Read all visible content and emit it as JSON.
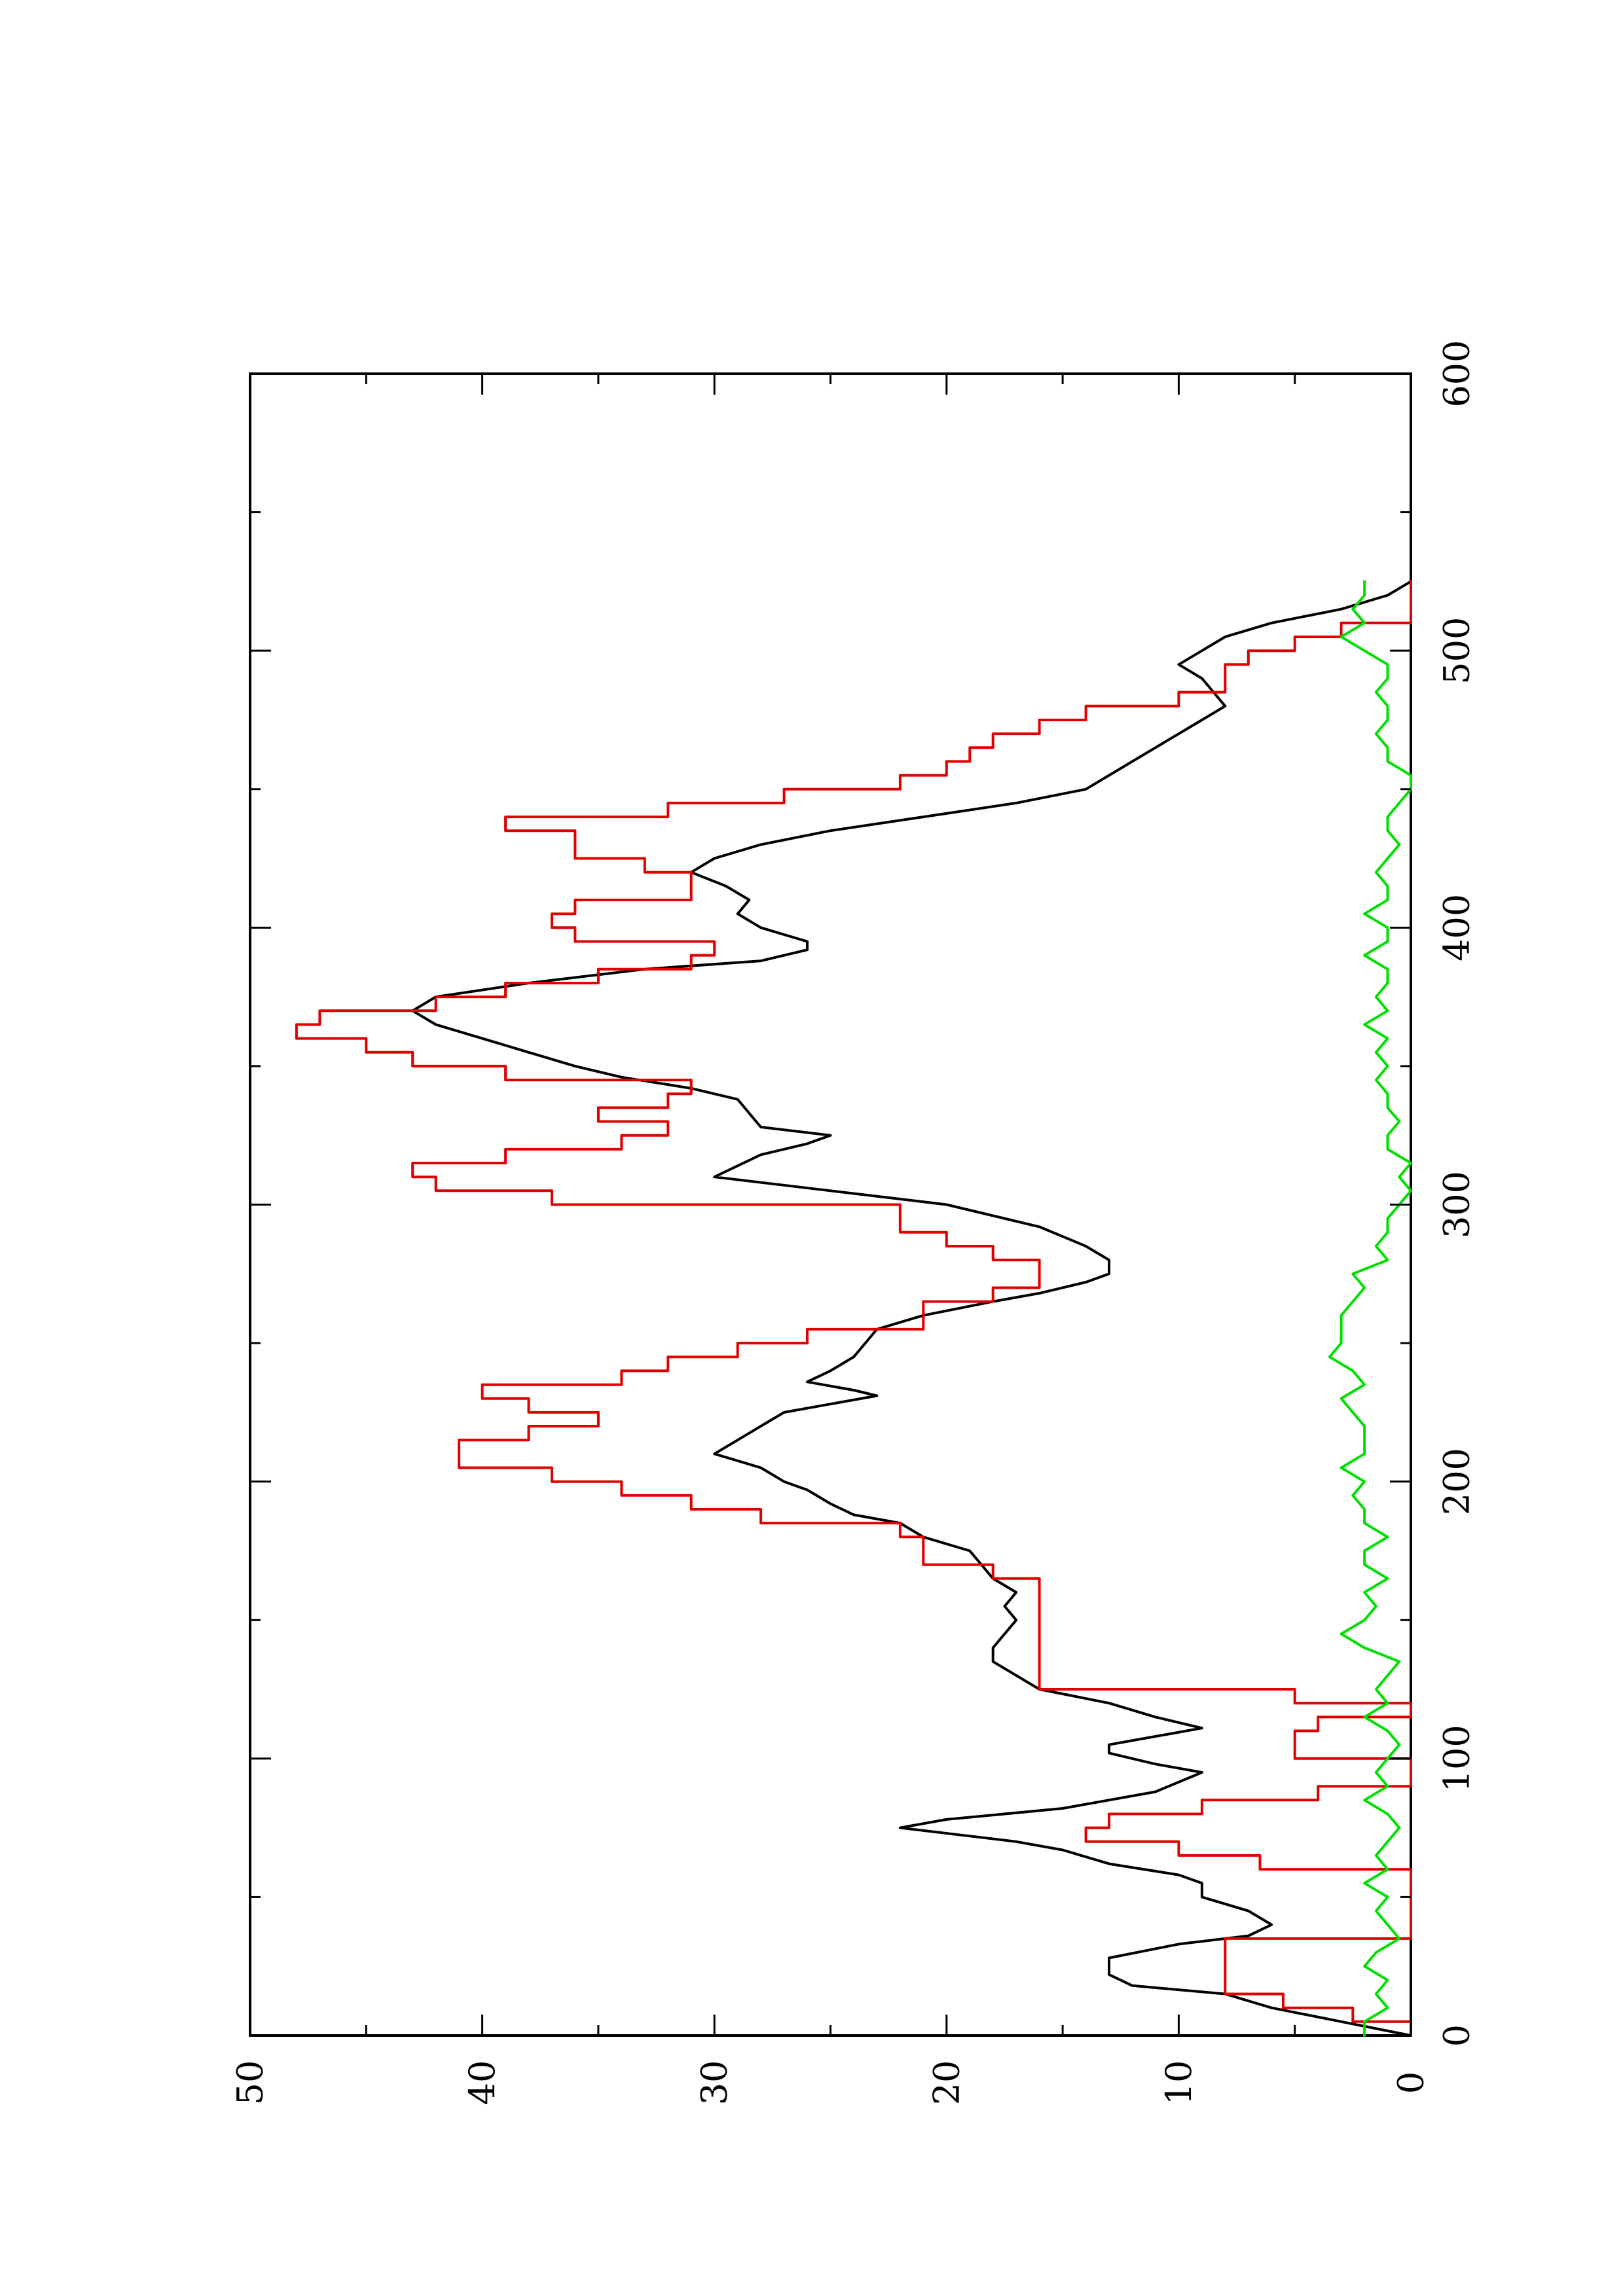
{
  "chart_data": {
    "type": "line",
    "orientation": "rotated-90-ccw",
    "title": "",
    "xlabel": "",
    "ylabel": "",
    "xlim": [
      0,
      600
    ],
    "ylim": [
      0,
      50
    ],
    "x_major_ticks": [
      0,
      100,
      200,
      300,
      400,
      500,
      600
    ],
    "x_tick_labels": [
      "0",
      "100",
      "200",
      "300",
      "400",
      "500",
      "600"
    ],
    "x_minor_ticks": [
      50,
      150,
      250,
      350,
      450,
      550
    ],
    "y_major_ticks": [
      0,
      10,
      20,
      30,
      40,
      50
    ],
    "y_tick_labels": [
      "0",
      "10",
      "20",
      "30",
      "40",
      "50"
    ],
    "y_minor_ticks": [
      5,
      15,
      25,
      35,
      45
    ],
    "grid": false,
    "legend": "none",
    "series": [
      {
        "color": "#000000",
        "style": "smooth",
        "points": [
          [
            0,
            0
          ],
          [
            5,
            3
          ],
          [
            10,
            6
          ],
          [
            15,
            8
          ],
          [
            18,
            12
          ],
          [
            22,
            13
          ],
          [
            28,
            13
          ],
          [
            33,
            10
          ],
          [
            36,
            7
          ],
          [
            40,
            6
          ],
          [
            45,
            7
          ],
          [
            50,
            9
          ],
          [
            55,
            9
          ],
          [
            58,
            10
          ],
          [
            62,
            13
          ],
          [
            67,
            15
          ],
          [
            70,
            17
          ],
          [
            72,
            19
          ],
          [
            75,
            22
          ],
          [
            78,
            20
          ],
          [
            82,
            15
          ],
          [
            88,
            11
          ],
          [
            95,
            9
          ],
          [
            98,
            11
          ],
          [
            102,
            13
          ],
          [
            105,
            13
          ],
          [
            108,
            11
          ],
          [
            111,
            9
          ],
          [
            115,
            11
          ],
          [
            120,
            13
          ],
          [
            125,
            16
          ],
          [
            130,
            17
          ],
          [
            135,
            18
          ],
          [
            140,
            18
          ],
          [
            145,
            17.5
          ],
          [
            150,
            17
          ],
          [
            155,
            17.5
          ],
          [
            160,
            17
          ],
          [
            165,
            18
          ],
          [
            170,
            18.5
          ],
          [
            175,
            19
          ],
          [
            180,
            21
          ],
          [
            185,
            22
          ],
          [
            188,
            24
          ],
          [
            192,
            25
          ],
          [
            197,
            26
          ],
          [
            200,
            27
          ],
          [
            205,
            28
          ],
          [
            210,
            30
          ],
          [
            215,
            29
          ],
          [
            220,
            28
          ],
          [
            225,
            27
          ],
          [
            228,
            25
          ],
          [
            231,
            23
          ],
          [
            233,
            24
          ],
          [
            236,
            26
          ],
          [
            240,
            25
          ],
          [
            245,
            24
          ],
          [
            250,
            23.5
          ],
          [
            255,
            23
          ],
          [
            260,
            21
          ],
          [
            265,
            18
          ],
          [
            268,
            16
          ],
          [
            272,
            14
          ],
          [
            275,
            13
          ],
          [
            280,
            13
          ],
          [
            285,
            14
          ],
          [
            292,
            16
          ],
          [
            300,
            20
          ],
          [
            305,
            25
          ],
          [
            310,
            30
          ],
          [
            318,
            28
          ],
          [
            322,
            26
          ],
          [
            325,
            25
          ],
          [
            328,
            28
          ],
          [
            333,
            28.5
          ],
          [
            338,
            29
          ],
          [
            342,
            31
          ],
          [
            346,
            34
          ],
          [
            350,
            36
          ],
          [
            355,
            38
          ],
          [
            360,
            40
          ],
          [
            365,
            42
          ],
          [
            370,
            43
          ],
          [
            375,
            42
          ],
          [
            380,
            38
          ],
          [
            385,
            33
          ],
          [
            388,
            28
          ],
          [
            392,
            26
          ],
          [
            395,
            26
          ],
          [
            400,
            28
          ],
          [
            405,
            29
          ],
          [
            410,
            28.5
          ],
          [
            415,
            29.5
          ],
          [
            420,
            31
          ],
          [
            425,
            30
          ],
          [
            430,
            28
          ],
          [
            435,
            25
          ],
          [
            440,
            21
          ],
          [
            445,
            17
          ],
          [
            450,
            14
          ],
          [
            455,
            13
          ],
          [
            460,
            12
          ],
          [
            465,
            11
          ],
          [
            470,
            10
          ],
          [
            475,
            9
          ],
          [
            480,
            8
          ],
          [
            485,
            8.5
          ],
          [
            490,
            9
          ],
          [
            495,
            10
          ],
          [
            500,
            9
          ],
          [
            505,
            8
          ],
          [
            510,
            6
          ],
          [
            515,
            3
          ],
          [
            520,
            1
          ],
          [
            525,
            0
          ]
        ]
      },
      {
        "color": "#e00000",
        "style": "stepped",
        "points": [
          [
            0,
            0
          ],
          [
            5,
            2.5
          ],
          [
            10,
            5.5
          ],
          [
            15,
            8
          ],
          [
            20,
            8
          ],
          [
            25,
            8
          ],
          [
            30,
            8
          ],
          [
            35,
            0
          ],
          [
            40,
            0
          ],
          [
            45,
            0
          ],
          [
            50,
            0
          ],
          [
            55,
            0
          ],
          [
            60,
            6.5
          ],
          [
            65,
            10
          ],
          [
            70,
            14
          ],
          [
            75,
            13
          ],
          [
            80,
            9
          ],
          [
            85,
            4
          ],
          [
            90,
            0
          ],
          [
            95,
            0
          ],
          [
            100,
            5
          ],
          [
            105,
            5
          ],
          [
            110,
            4
          ],
          [
            115,
            0
          ],
          [
            120,
            5
          ],
          [
            125,
            16
          ],
          [
            130,
            16
          ],
          [
            135,
            16
          ],
          [
            140,
            16
          ],
          [
            145,
            16
          ],
          [
            150,
            16
          ],
          [
            155,
            16
          ],
          [
            160,
            16
          ],
          [
            165,
            18
          ],
          [
            170,
            21
          ],
          [
            175,
            21
          ],
          [
            180,
            22
          ],
          [
            185,
            28
          ],
          [
            190,
            31
          ],
          [
            195,
            34
          ],
          [
            200,
            37
          ],
          [
            205,
            41
          ],
          [
            210,
            41
          ],
          [
            215,
            38
          ],
          [
            220,
            35
          ],
          [
            225,
            38
          ],
          [
            230,
            40
          ],
          [
            235,
            34
          ],
          [
            240,
            32
          ],
          [
            245,
            29
          ],
          [
            250,
            26
          ],
          [
            255,
            21
          ],
          [
            260,
            21
          ],
          [
            265,
            18
          ],
          [
            270,
            16
          ],
          [
            275,
            16
          ],
          [
            280,
            18
          ],
          [
            285,
            20
          ],
          [
            290,
            22
          ],
          [
            300,
            37
          ],
          [
            305,
            42
          ],
          [
            310,
            43
          ],
          [
            315,
            39
          ],
          [
            320,
            34
          ],
          [
            325,
            32
          ],
          [
            330,
            35
          ],
          [
            335,
            32
          ],
          [
            340,
            31
          ],
          [
            345,
            39
          ],
          [
            350,
            43
          ],
          [
            355,
            45
          ],
          [
            360,
            48
          ],
          [
            365,
            47
          ],
          [
            370,
            42
          ],
          [
            375,
            39
          ],
          [
            380,
            35
          ],
          [
            385,
            31
          ],
          [
            390,
            30
          ],
          [
            395,
            36
          ],
          [
            400,
            37
          ],
          [
            405,
            36
          ],
          [
            410,
            31
          ],
          [
            415,
            31
          ],
          [
            420,
            33
          ],
          [
            425,
            36
          ],
          [
            430,
            36
          ],
          [
            435,
            39
          ],
          [
            440,
            32
          ],
          [
            445,
            27
          ],
          [
            450,
            22
          ],
          [
            455,
            20
          ],
          [
            460,
            19
          ],
          [
            465,
            18
          ],
          [
            470,
            16
          ],
          [
            475,
            14
          ],
          [
            480,
            10
          ],
          [
            485,
            8
          ],
          [
            490,
            8
          ],
          [
            495,
            7
          ],
          [
            500,
            5
          ],
          [
            505,
            3
          ],
          [
            510,
            0
          ],
          [
            520,
            0
          ],
          [
            525,
            0
          ]
        ]
      },
      {
        "color": "#00e000",
        "style": "noisy",
        "points": [
          [
            0,
            2
          ],
          [
            5,
            2
          ],
          [
            10,
            1
          ],
          [
            15,
            1.5
          ],
          [
            20,
            1
          ],
          [
            25,
            2
          ],
          [
            30,
            1.5
          ],
          [
            35,
            0.5
          ],
          [
            40,
            1
          ],
          [
            45,
            1.5
          ],
          [
            50,
            1
          ],
          [
            55,
            2
          ],
          [
            60,
            1
          ],
          [
            65,
            1.5
          ],
          [
            70,
            1
          ],
          [
            75,
            0.5
          ],
          [
            80,
            1
          ],
          [
            85,
            2
          ],
          [
            90,
            1
          ],
          [
            95,
            1.5
          ],
          [
            100,
            1
          ],
          [
            105,
            0.5
          ],
          [
            110,
            1
          ],
          [
            115,
            2
          ],
          [
            120,
            1
          ],
          [
            125,
            1.5
          ],
          [
            130,
            1
          ],
          [
            135,
            0.5
          ],
          [
            140,
            2
          ],
          [
            145,
            3
          ],
          [
            150,
            2
          ],
          [
            155,
            1.5
          ],
          [
            160,
            2
          ],
          [
            165,
            1
          ],
          [
            170,
            2
          ],
          [
            175,
            2
          ],
          [
            180,
            1
          ],
          [
            185,
            2
          ],
          [
            190,
            2
          ],
          [
            195,
            2.5
          ],
          [
            200,
            2
          ],
          [
            205,
            3
          ],
          [
            210,
            2
          ],
          [
            215,
            2
          ],
          [
            220,
            2
          ],
          [
            225,
            2.5
          ],
          [
            230,
            3
          ],
          [
            235,
            2
          ],
          [
            240,
            2.5
          ],
          [
            245,
            3.5
          ],
          [
            250,
            3
          ],
          [
            255,
            3
          ],
          [
            260,
            3
          ],
          [
            265,
            2.5
          ],
          [
            270,
            2
          ],
          [
            275,
            2.5
          ],
          [
            280,
            1
          ],
          [
            285,
            1.5
          ],
          [
            290,
            1
          ],
          [
            295,
            1
          ],
          [
            300,
            0.5
          ],
          [
            305,
            0
          ],
          [
            310,
            0.5
          ],
          [
            315,
            0
          ],
          [
            320,
            1
          ],
          [
            325,
            1
          ],
          [
            330,
            0.5
          ],
          [
            335,
            1
          ],
          [
            340,
            1
          ],
          [
            345,
            1.5
          ],
          [
            350,
            1
          ],
          [
            355,
            1.5
          ],
          [
            360,
            1
          ],
          [
            365,
            2
          ],
          [
            370,
            1
          ],
          [
            375,
            1.5
          ],
          [
            380,
            1
          ],
          [
            385,
            1
          ],
          [
            390,
            2
          ],
          [
            395,
            1
          ],
          [
            400,
            1
          ],
          [
            405,
            2
          ],
          [
            410,
            1
          ],
          [
            415,
            1
          ],
          [
            420,
            1.5
          ],
          [
            425,
            1
          ],
          [
            430,
            0.5
          ],
          [
            435,
            1
          ],
          [
            440,
            1
          ],
          [
            445,
            0.5
          ],
          [
            450,
            0
          ],
          [
            455,
            0
          ],
          [
            460,
            1
          ],
          [
            465,
            1
          ],
          [
            470,
            1.5
          ],
          [
            475,
            1
          ],
          [
            480,
            1
          ],
          [
            485,
            1.5
          ],
          [
            490,
            1
          ],
          [
            495,
            1
          ],
          [
            500,
            2
          ],
          [
            505,
            3
          ],
          [
            510,
            2
          ],
          [
            515,
            2.5
          ],
          [
            520,
            2
          ],
          [
            525,
            2
          ]
        ]
      }
    ]
  }
}
